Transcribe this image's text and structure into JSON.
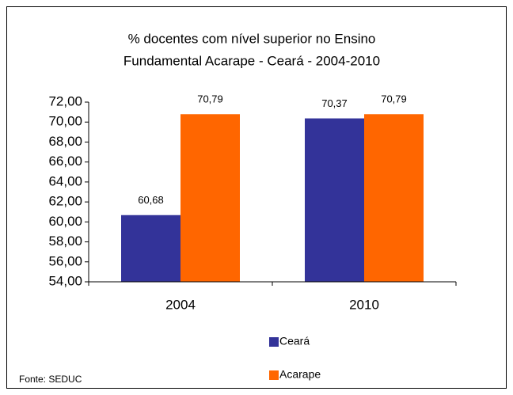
{
  "chart_data": {
    "type": "bar",
    "title": [
      "% docentes com nível superior no Ensino",
      "Fundamental Acarape - Ceará - 2004-2010"
    ],
    "categories": [
      "2004",
      "2010"
    ],
    "series": [
      {
        "name": "Ceará",
        "color": "#333399",
        "values": [
          60.68,
          70.37
        ],
        "value_labels": [
          "60,68",
          "70,37"
        ]
      },
      {
        "name": "Acarape",
        "color": "#ff6600",
        "values": [
          70.79,
          70.79
        ],
        "value_labels": [
          "70,79",
          "70,79"
        ]
      }
    ],
    "ylim": [
      54,
      72
    ],
    "yticks": [
      {
        "value": 54,
        "label": "54,00"
      },
      {
        "value": 56,
        "label": "56,00"
      },
      {
        "value": 58,
        "label": "58,00"
      },
      {
        "value": 60,
        "label": "60,00"
      },
      {
        "value": 62,
        "label": "62,00"
      },
      {
        "value": 64,
        "label": "64,00"
      },
      {
        "value": 66,
        "label": "66,00"
      },
      {
        "value": 68,
        "label": "68,00"
      },
      {
        "value": 70,
        "label": "70,00"
      },
      {
        "value": 72,
        "label": "72,00"
      }
    ],
    "grid": false,
    "legend": "bottom",
    "source": "Fonte: SEDUC"
  }
}
